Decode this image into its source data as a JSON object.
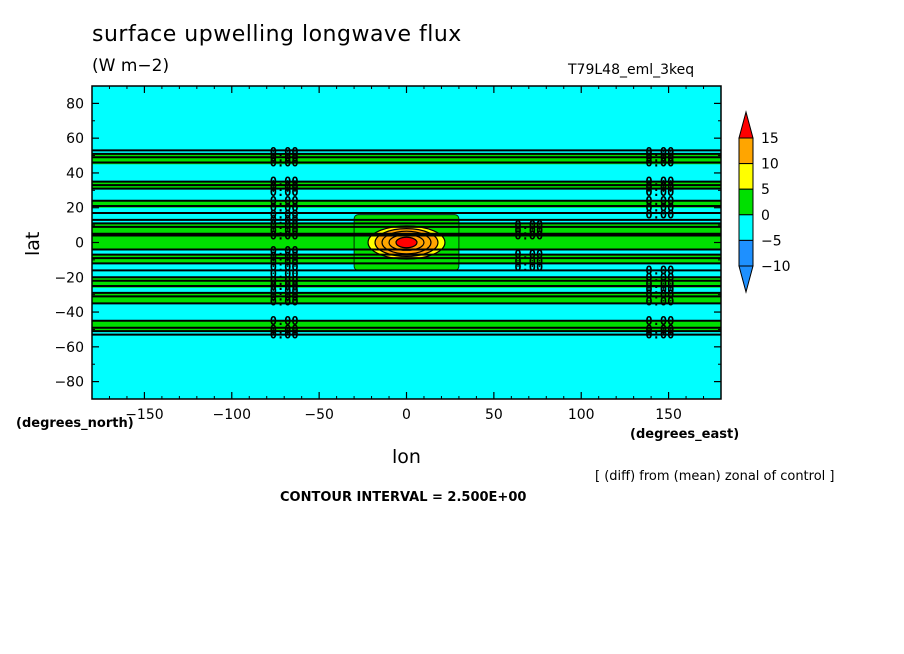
{
  "chart_data": {
    "type": "contour",
    "title": "surface upwelling longwave flux",
    "units": "(W m−2)",
    "run_label": "T79L48_eml_3keq",
    "xlabel": "lon",
    "ylabel": "lat",
    "x_unit_label": "(degrees_east)",
    "y_unit_label": "(degrees_north)",
    "xlim": [
      -180,
      180
    ],
    "ylim": [
      -90,
      90
    ],
    "x_ticks": [
      -150,
      -100,
      -50,
      0,
      50,
      100,
      150
    ],
    "x_tick_labels": [
      "−150",
      "−100",
      "−50",
      "0",
      "50",
      "100",
      "150"
    ],
    "y_ticks": [
      80,
      60,
      40,
      20,
      0,
      -20,
      -40,
      -60,
      -80
    ],
    "y_tick_labels": [
      "80",
      "60",
      "40",
      "20",
      "0",
      "−20",
      "−40",
      "−60",
      "−80"
    ],
    "footnote": "[ (diff) from (mean) zonal of control ]",
    "contour_interval": "CONTOUR INTERVAL = 2.500E+00",
    "contour_label": "0.00",
    "colorbar": {
      "levels": [
        -10,
        -5,
        0,
        5,
        10,
        15
      ],
      "level_labels": [
        "−10",
        "−5",
        "0",
        "5",
        "10",
        "15"
      ],
      "colors": [
        "#1e90ff",
        "#00ffff",
        "#00e000",
        "#ffff00",
        "#ffa500",
        "#ff0000"
      ]
    },
    "background_color": "#00ffff",
    "zonal_bands": [
      {
        "lat_min": 45,
        "lat_max": 51,
        "fill": "#00e000"
      },
      {
        "lat_min": 31,
        "lat_max": 35,
        "fill": "#00e000"
      },
      {
        "lat_min": 20,
        "lat_max": 24,
        "fill": "#00e000"
      },
      {
        "lat_min": 5,
        "lat_max": 11,
        "fill": "#00e000"
      },
      {
        "lat_min": -4,
        "lat_max": 4,
        "fill": "#00e000"
      },
      {
        "lat_min": -12,
        "lat_max": -7,
        "fill": "#00e000"
      },
      {
        "lat_min": -26,
        "lat_max": -20,
        "fill": "#00e000"
      },
      {
        "lat_min": -35,
        "lat_max": -29,
        "fill": "#00e000"
      },
      {
        "lat_min": -51,
        "lat_max": -45,
        "fill": "#00e000"
      }
    ],
    "contour_lines_lat": [
      53,
      51,
      49,
      46,
      35,
      33,
      31,
      24,
      21,
      17,
      13,
      11,
      9,
      5,
      4,
      -4,
      -7,
      -9,
      -12,
      -16,
      -20,
      -22,
      -25,
      -29,
      -31,
      -35,
      -45,
      -49,
      -51,
      -53
    ],
    "anomaly_region": {
      "lon_min": -30,
      "lon_max": 30,
      "lat_min": -16,
      "lat_max": 16,
      "fill": "#00e000"
    },
    "anomaly_rings": [
      {
        "rx_lon": 22,
        "ry_lat": 9.5,
        "fill": "#ffff00"
      },
      {
        "rx_lon": 18,
        "ry_lat": 8,
        "fill": "#ffa500"
      },
      {
        "rx_lon": 14,
        "ry_lat": 6.5,
        "fill": "#ffa500"
      },
      {
        "rx_lon": 10,
        "ry_lat": 4.5,
        "fill": "#ffa500"
      },
      {
        "rx_lon": 6,
        "ry_lat": 3,
        "fill": "#ff0000"
      }
    ],
    "anomaly_center": [
      0,
      0
    ],
    "label_columns": [
      {
        "lon": -70,
        "lats": [
          52,
          49,
          46,
          35,
          32,
          29,
          24,
          20,
          16,
          13,
          10,
          7,
          4,
          -5,
          -8,
          -11,
          -14,
          -18,
          -22,
          -25,
          -28,
          -31,
          -34,
          -45,
          -50,
          -53
        ]
      },
      {
        "lon": 70,
        "lats": [
          10,
          7,
          4,
          -7,
          -11,
          -14
        ]
      },
      {
        "lon": 145,
        "lats": [
          52,
          49,
          46,
          35,
          32,
          29,
          24,
          20,
          16,
          -16,
          -20,
          -24,
          -27,
          -30,
          -34,
          -45,
          -50,
          -53
        ]
      }
    ]
  }
}
